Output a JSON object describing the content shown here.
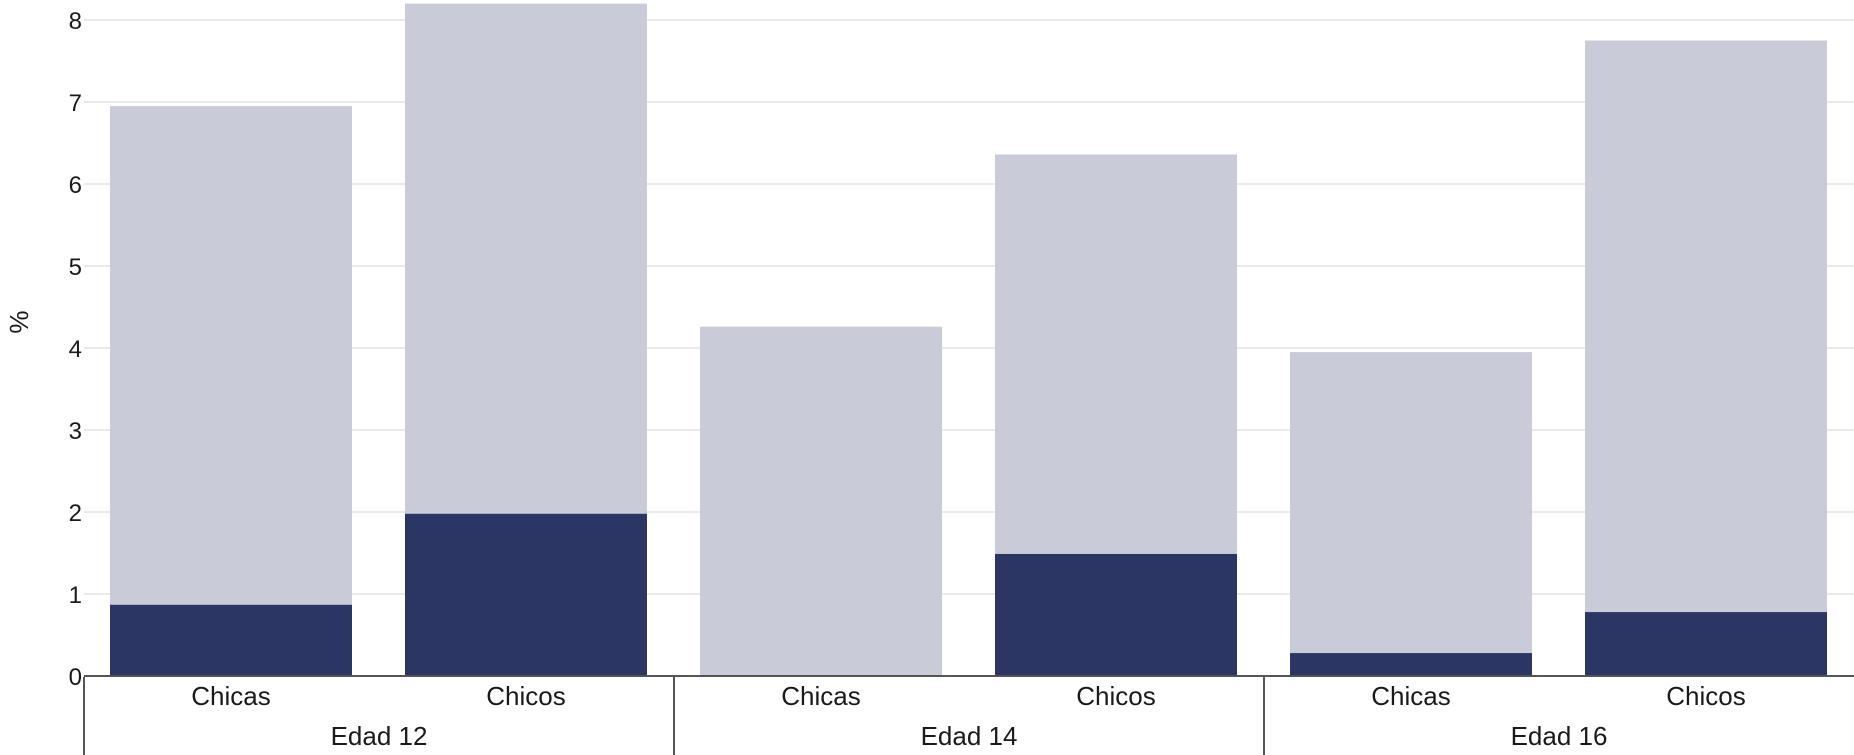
{
  "chart_data": {
    "type": "bar",
    "stacked": true,
    "ylabel": "%",
    "ylim": [
      0,
      8.2
    ],
    "yticks": [
      "0",
      "1",
      "2",
      "3",
      "4",
      "5",
      "6",
      "7",
      "8"
    ],
    "grid": true,
    "groups": [
      {
        "label": "Edad 12",
        "categories": [
          "Chicas",
          "Chicos"
        ]
      },
      {
        "label": "Edad 14",
        "categories": [
          "Chicas",
          "Chicos"
        ]
      },
      {
        "label": "Edad 16",
        "categories": [
          "Chicas",
          "Chicos"
        ]
      }
    ],
    "series": [
      {
        "color": "#2b3664",
        "values": [
          0.87,
          1.98,
          0.0,
          1.49,
          0.28,
          0.78
        ]
      },
      {
        "color": "#c9ccd8",
        "values": [
          6.08,
          6.22,
          4.26,
          4.87,
          3.67,
          6.97
        ]
      }
    ]
  }
}
